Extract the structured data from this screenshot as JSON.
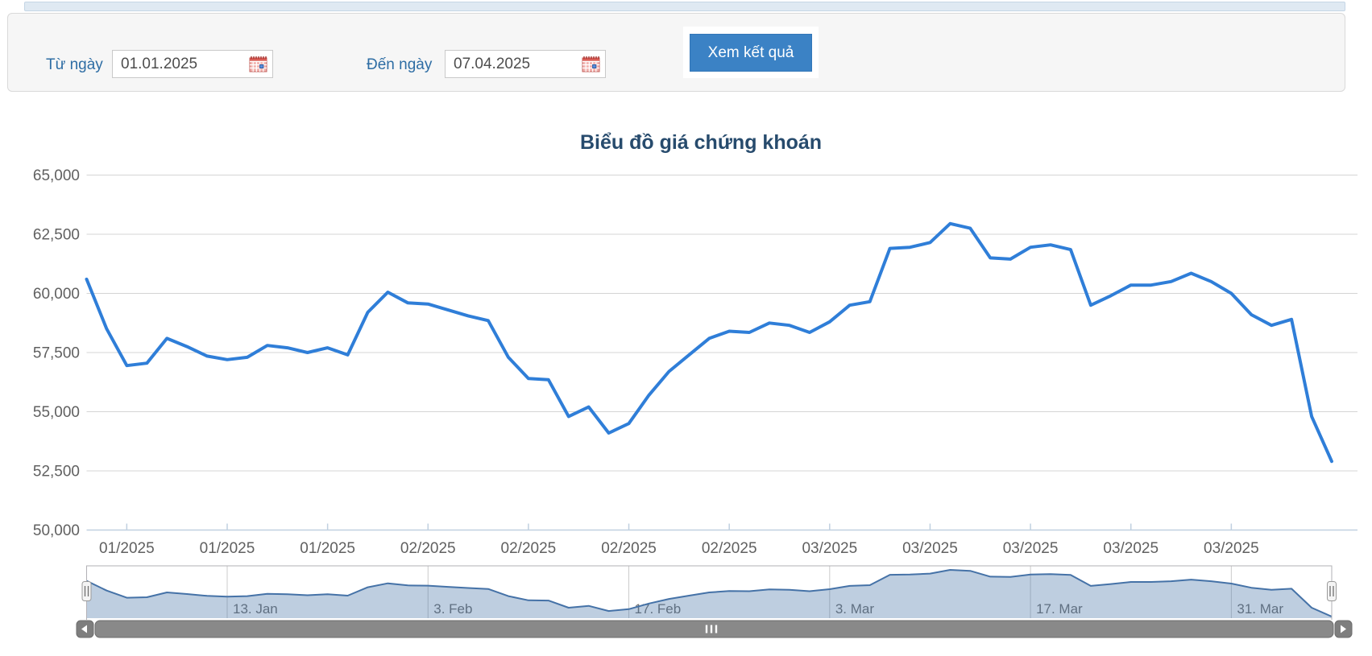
{
  "form": {
    "from_label": "Từ ngày",
    "from_value": "01.01.2025",
    "to_label": "Đến ngày",
    "to_value": "07.04.2025",
    "submit_label": "Xem kết quả"
  },
  "chart_data": {
    "type": "line",
    "title": "Biểu đồ giá chứng khoán",
    "ylim": [
      50000,
      65000
    ],
    "ytick_step": 2500,
    "ytick_labels": [
      "65,000",
      "62,500",
      "60,000",
      "57,500",
      "55,000",
      "52,500",
      "50,000"
    ],
    "x": [
      "2025-01-02",
      "2025-01-03",
      "2025-01-06",
      "2025-01-07",
      "2025-01-08",
      "2025-01-09",
      "2025-01-10",
      "2025-01-13",
      "2025-01-14",
      "2025-01-15",
      "2025-01-16",
      "2025-01-17",
      "2025-01-20",
      "2025-01-21",
      "2025-01-22",
      "2025-01-23",
      "2025-01-24",
      "2025-02-03",
      "2025-02-04",
      "2025-02-05",
      "2025-02-06",
      "2025-02-07",
      "2025-02-10",
      "2025-02-11",
      "2025-02-12",
      "2025-02-13",
      "2025-02-14",
      "2025-02-17",
      "2025-02-18",
      "2025-02-19",
      "2025-02-20",
      "2025-02-21",
      "2025-02-24",
      "2025-02-25",
      "2025-02-26",
      "2025-02-27",
      "2025-02-28",
      "2025-03-03",
      "2025-03-04",
      "2025-03-05",
      "2025-03-06",
      "2025-03-07",
      "2025-03-10",
      "2025-03-11",
      "2025-03-12",
      "2025-03-13",
      "2025-03-14",
      "2025-03-17",
      "2025-03-18",
      "2025-03-19",
      "2025-03-20",
      "2025-03-21",
      "2025-03-24",
      "2025-03-25",
      "2025-03-26",
      "2025-03-27",
      "2025-03-28",
      "2025-03-31",
      "2025-04-01",
      "2025-04-02",
      "2025-04-03",
      "2025-04-04",
      "2025-04-07"
    ],
    "values": [
      60600,
      58500,
      56950,
      57050,
      58100,
      57750,
      57350,
      57200,
      57300,
      57800,
      57700,
      57500,
      57700,
      57400,
      59200,
      60050,
      59600,
      59550,
      59300,
      59050,
      58850,
      57300,
      56400,
      56350,
      54800,
      55200,
      54100,
      54500,
      55700,
      56700,
      57400,
      58100,
      58400,
      58350,
      58750,
      58650,
      58350,
      58800,
      59500,
      59650,
      61900,
      61950,
      62150,
      62950,
      62750,
      61500,
      61450,
      61950,
      62050,
      61850,
      59500,
      59900,
      60350,
      60350,
      60500,
      60850,
      60500,
      60000,
      59100,
      58650,
      58900,
      54800,
      52900
    ],
    "xticks": [
      {
        "i": 2,
        "label": "01/2025"
      },
      {
        "i": 7,
        "label": "01/2025"
      },
      {
        "i": 12,
        "label": "01/2025"
      },
      {
        "i": 17,
        "label": "02/2025"
      },
      {
        "i": 22,
        "label": "02/2025"
      },
      {
        "i": 27,
        "label": "02/2025"
      },
      {
        "i": 32,
        "label": "02/2025"
      },
      {
        "i": 37,
        "label": "03/2025"
      },
      {
        "i": 42,
        "label": "03/2025"
      },
      {
        "i": 47,
        "label": "03/2025"
      },
      {
        "i": 52,
        "label": "03/2025"
      },
      {
        "i": 57,
        "label": "03/2025"
      }
    ],
    "navigator_ticks": [
      {
        "i": 7,
        "label": "13. Jan"
      },
      {
        "i": 17,
        "label": "3. Feb"
      },
      {
        "i": 27,
        "label": "17. Feb"
      },
      {
        "i": 37,
        "label": "3. Mar"
      },
      {
        "i": 47,
        "label": "17. Mar"
      },
      {
        "i": 57,
        "label": "31. Mar"
      }
    ],
    "legend": "off",
    "grid": "on",
    "colors": {
      "line": "#2f7ed8",
      "grid": "#d4d4d4",
      "axis": "#c0d0e0",
      "label": "#606060",
      "title": "#274b6d",
      "nav_line": "#4572a7",
      "nav_grid": "#cbcbcb",
      "nav_label": "#6f6f6f",
      "outline": "#b2b1b6",
      "scrollbar": "#898989",
      "scrollbar_button": "#7e7e7e",
      "scrollbar_border": "#6d6d6d",
      "button_bg": "#3b82c5",
      "form_label": "#2e6da4"
    }
  }
}
